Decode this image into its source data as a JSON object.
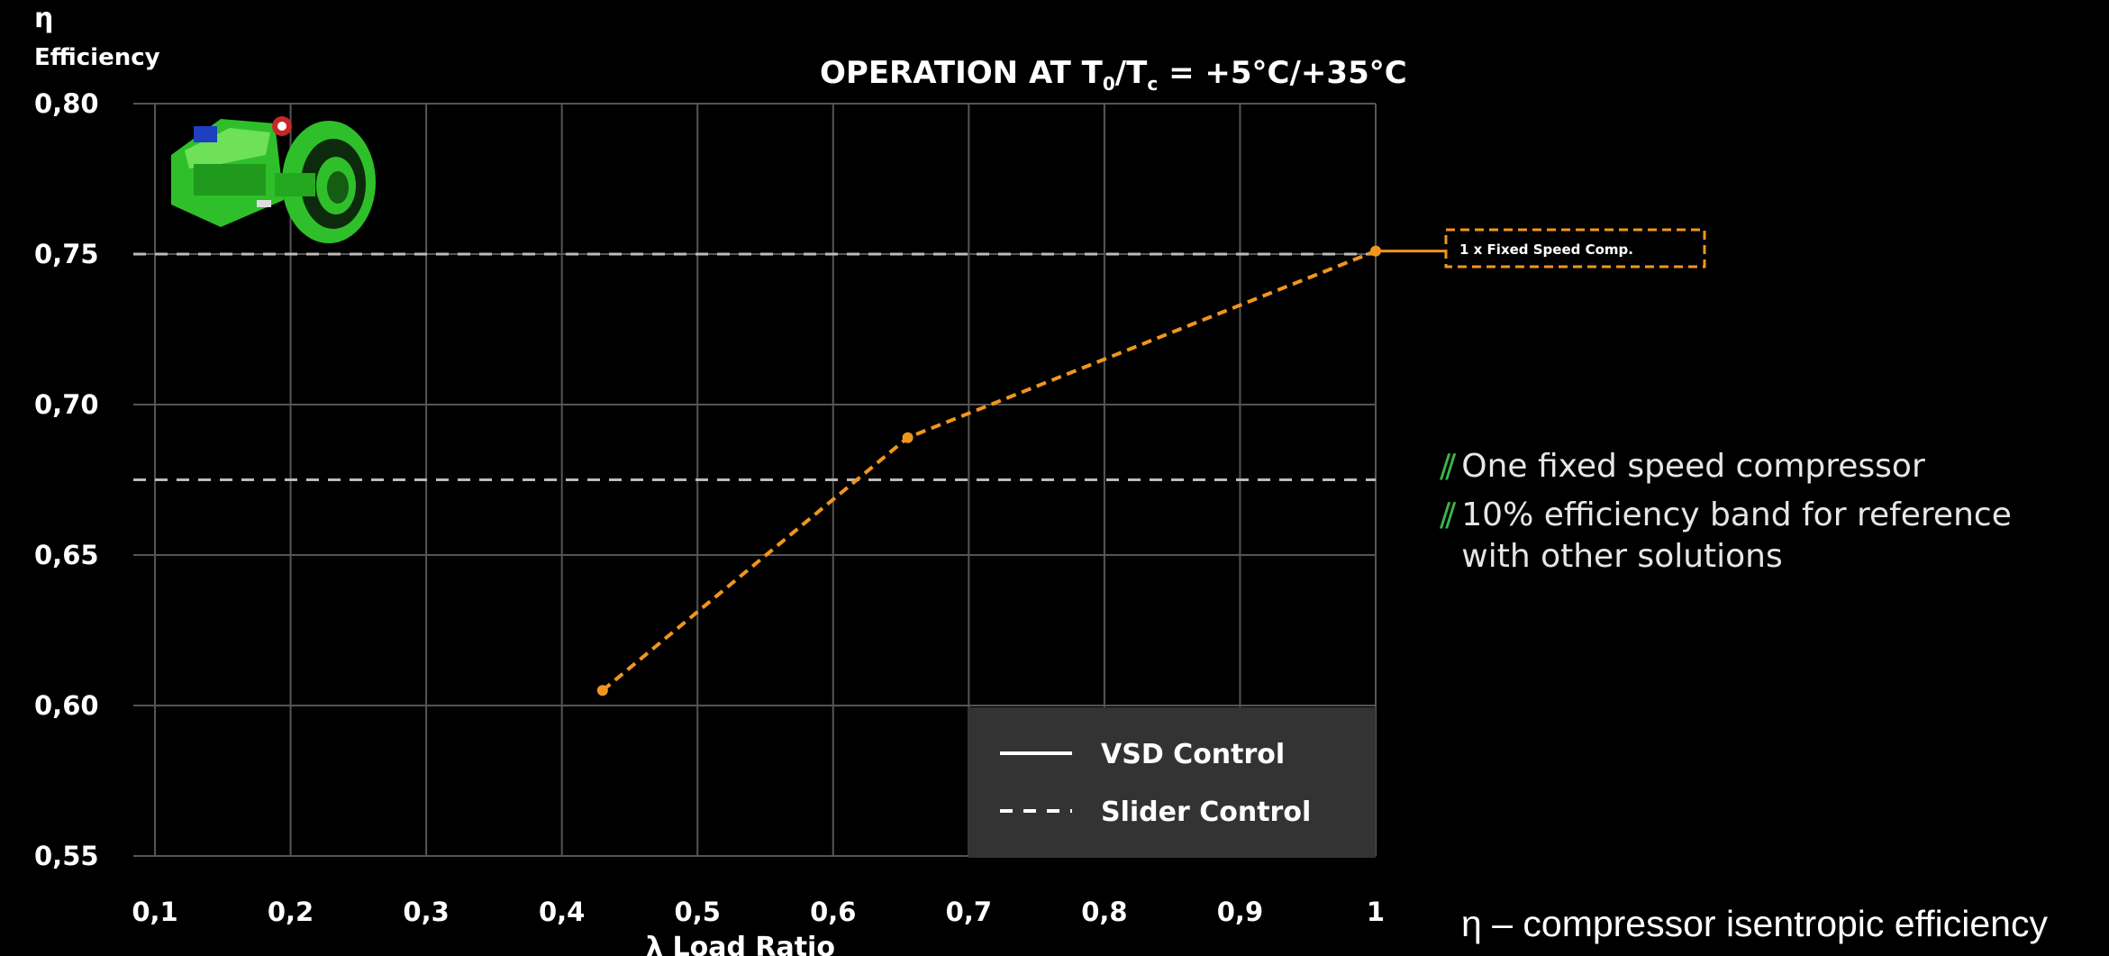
{
  "chart_data": {
    "type": "line",
    "title_parts": {
      "pre": "OPERATION AT T",
      "sub0": "0",
      "mid": "/T",
      "subc": "c",
      "post": " = +5°C/+35°C"
    },
    "ylabel_symbol": "η",
    "ylabel": "Efficiency",
    "xlabel": "λ Load Ratio",
    "xlim": [
      0.1,
      1.0
    ],
    "ylim": [
      0.55,
      0.8
    ],
    "x_ticks": [
      {
        "v": 0.1,
        "label": "0,1"
      },
      {
        "v": 0.2,
        "label": "0,2"
      },
      {
        "v": 0.3,
        "label": "0,3"
      },
      {
        "v": 0.4,
        "label": "0,4"
      },
      {
        "v": 0.5,
        "label": "0,5"
      },
      {
        "v": 0.6,
        "label": "0,6"
      },
      {
        "v": 0.7,
        "label": "0,7"
      },
      {
        "v": 0.8,
        "label": "0,8"
      },
      {
        "v": 0.9,
        "label": "0,9"
      },
      {
        "v": 1.0,
        "label": "1"
      }
    ],
    "y_ticks": [
      {
        "v": 0.8,
        "label": "0,80"
      },
      {
        "v": 0.75,
        "label": "0,75"
      },
      {
        "v": 0.7,
        "label": "0,70"
      },
      {
        "v": 0.65,
        "label": "0,65"
      },
      {
        "v": 0.6,
        "label": "0,60"
      },
      {
        "v": 0.55,
        "label": "0,55"
      }
    ],
    "reference_lines": [
      0.75,
      0.675
    ],
    "grid": true,
    "series": [
      {
        "name": "1 x Fixed Speed Comp.",
        "style": "dashed",
        "color": "#f0961e",
        "points": [
          {
            "x": 0.43,
            "y": 0.605
          },
          {
            "x": 0.655,
            "y": 0.689
          },
          {
            "x": 1.0,
            "y": 0.751
          }
        ]
      }
    ],
    "legend": {
      "position": "bottom-right",
      "entries": [
        {
          "label": "VSD Control",
          "style": "solid"
        },
        {
          "label": "Slider Control",
          "style": "dashed"
        }
      ]
    }
  },
  "side_notes": [
    "One fixed speed compressor",
    "10% efficiency band for reference with other solutions"
  ],
  "note_marker": "//",
  "footnote": "η – compressor isentropic efficiency",
  "colors": {
    "background": "#000000",
    "series": "#f0961e",
    "grid": "#555555",
    "reference": "#bbbbbb",
    "accent_green": "#3db54a",
    "legend_bg": "#333333"
  }
}
